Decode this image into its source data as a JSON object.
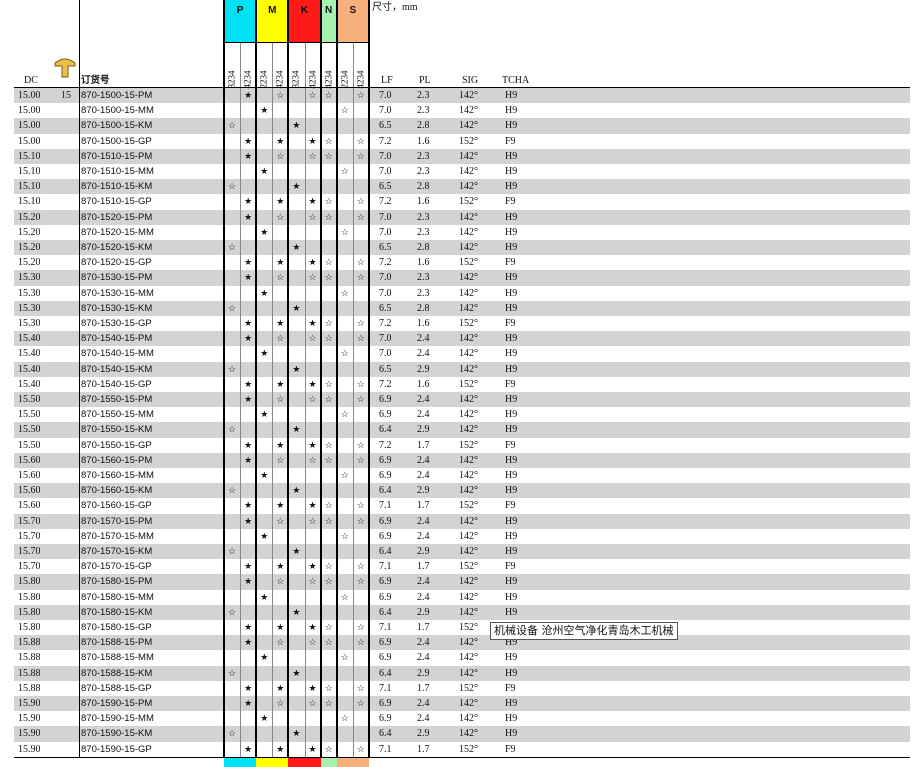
{
  "header": {
    "dc": "DC",
    "order": "订货号",
    "size_label": "尺寸，mm",
    "lf": "LF",
    "pl": "PL",
    "sig": "SIG",
    "tcha": "TCHA",
    "first_row_size": "15",
    "groups": [
      {
        "label": "P",
        "span": 2,
        "color": "#00e1f5"
      },
      {
        "label": "M",
        "span": 2,
        "color": "#ffff00"
      },
      {
        "label": "K",
        "span": 2,
        "color": "#ff1a1a"
      },
      {
        "label": "N",
        "span": 1,
        "color": "#a6f0b0"
      },
      {
        "label": "S",
        "span": 2,
        "color": "#f7b07c"
      }
    ],
    "grade_codes": [
      "3234",
      "4234",
      "2234",
      "4234",
      "3234",
      "4234",
      "4234",
      "2234",
      "4234"
    ]
  },
  "rows": [
    [
      "15.00",
      "870-1500-15-PM",
      [
        null,
        "★",
        null,
        "☆",
        null,
        "☆",
        "☆",
        null,
        "☆"
      ],
      "7.0",
      "2.3",
      "142°",
      "H9"
    ],
    [
      "15.00",
      "870-1500-15-MM",
      [
        null,
        null,
        "★",
        null,
        null,
        null,
        null,
        "☆",
        null
      ],
      "7.0",
      "2.3",
      "142°",
      "H9"
    ],
    [
      "15.00",
      "870-1500-15-KM",
      [
        "☆",
        null,
        null,
        null,
        "★",
        null,
        null,
        null,
        null
      ],
      "6.5",
      "2.8",
      "142°",
      "H9"
    ],
    [
      "15.00",
      "870-1500-15-GP",
      [
        null,
        "★",
        null,
        "★",
        null,
        "★",
        "☆",
        null,
        "☆"
      ],
      "7.2",
      "1.6",
      "152°",
      "F9"
    ],
    [
      "15.10",
      "870-1510-15-PM",
      [
        null,
        "★",
        null,
        "☆",
        null,
        "☆",
        "☆",
        null,
        "☆"
      ],
      "7.0",
      "2.3",
      "142°",
      "H9"
    ],
    [
      "15.10",
      "870-1510-15-MM",
      [
        null,
        null,
        "★",
        null,
        null,
        null,
        null,
        "☆",
        null
      ],
      "7.0",
      "2.3",
      "142°",
      "H9"
    ],
    [
      "15.10",
      "870-1510-15-KM",
      [
        "☆",
        null,
        null,
        null,
        "★",
        null,
        null,
        null,
        null
      ],
      "6.5",
      "2.8",
      "142°",
      "H9"
    ],
    [
      "15.10",
      "870-1510-15-GP",
      [
        null,
        "★",
        null,
        "★",
        null,
        "★",
        "☆",
        null,
        "☆"
      ],
      "7.2",
      "1.6",
      "152°",
      "F9"
    ],
    [
      "15.20",
      "870-1520-15-PM",
      [
        null,
        "★",
        null,
        "☆",
        null,
        "☆",
        "☆",
        null,
        "☆"
      ],
      "7.0",
      "2.3",
      "142°",
      "H9"
    ],
    [
      "15.20",
      "870-1520-15-MM",
      [
        null,
        null,
        "★",
        null,
        null,
        null,
        null,
        "☆",
        null
      ],
      "7.0",
      "2.3",
      "142°",
      "H9"
    ],
    [
      "15.20",
      "870-1520-15-KM",
      [
        "☆",
        null,
        null,
        null,
        "★",
        null,
        null,
        null,
        null
      ],
      "6.5",
      "2.8",
      "142°",
      "H9"
    ],
    [
      "15.20",
      "870-1520-15-GP",
      [
        null,
        "★",
        null,
        "★",
        null,
        "★",
        "☆",
        null,
        "☆"
      ],
      "7.2",
      "1.6",
      "152°",
      "F9"
    ],
    [
      "15.30",
      "870-1530-15-PM",
      [
        null,
        "★",
        null,
        "☆",
        null,
        "☆",
        "☆",
        null,
        "☆"
      ],
      "7.0",
      "2.3",
      "142°",
      "H9"
    ],
    [
      "15.30",
      "870-1530-15-MM",
      [
        null,
        null,
        "★",
        null,
        null,
        null,
        null,
        "☆",
        null
      ],
      "7.0",
      "2.3",
      "142°",
      "H9"
    ],
    [
      "15.30",
      "870-1530-15-KM",
      [
        "☆",
        null,
        null,
        null,
        "★",
        null,
        null,
        null,
        null
      ],
      "6.5",
      "2.8",
      "142°",
      "H9"
    ],
    [
      "15.30",
      "870-1530-15-GP",
      [
        null,
        "★",
        null,
        "★",
        null,
        "★",
        "☆",
        null,
        "☆"
      ],
      "7.2",
      "1.6",
      "152°",
      "F9"
    ],
    [
      "15.40",
      "870-1540-15-PM",
      [
        null,
        "★",
        null,
        "☆",
        null,
        "☆",
        "☆",
        null,
        "☆"
      ],
      "7.0",
      "2.4",
      "142°",
      "H9"
    ],
    [
      "15.40",
      "870-1540-15-MM",
      [
        null,
        null,
        "★",
        null,
        null,
        null,
        null,
        "☆",
        null
      ],
      "7.0",
      "2.4",
      "142°",
      "H9"
    ],
    [
      "15.40",
      "870-1540-15-KM",
      [
        "☆",
        null,
        null,
        null,
        "★",
        null,
        null,
        null,
        null
      ],
      "6.5",
      "2.9",
      "142°",
      "H9"
    ],
    [
      "15.40",
      "870-1540-15-GP",
      [
        null,
        "★",
        null,
        "★",
        null,
        "★",
        "☆",
        null,
        "☆"
      ],
      "7.2",
      "1.6",
      "152°",
      "F9"
    ],
    [
      "15.50",
      "870-1550-15-PM",
      [
        null,
        "★",
        null,
        "☆",
        null,
        "☆",
        "☆",
        null,
        "☆"
      ],
      "6.9",
      "2.4",
      "142°",
      "H9"
    ],
    [
      "15.50",
      "870-1550-15-MM",
      [
        null,
        null,
        "★",
        null,
        null,
        null,
        null,
        "☆",
        null
      ],
      "6.9",
      "2.4",
      "142°",
      "H9"
    ],
    [
      "15.50",
      "870-1550-15-KM",
      [
        "☆",
        null,
        null,
        null,
        "★",
        null,
        null,
        null,
        null
      ],
      "6.4",
      "2.9",
      "142°",
      "H9"
    ],
    [
      "15.50",
      "870-1550-15-GP",
      [
        null,
        "★",
        null,
        "★",
        null,
        "★",
        "☆",
        null,
        "☆"
      ],
      "7.2",
      "1.7",
      "152°",
      "F9"
    ],
    [
      "15.60",
      "870-1560-15-PM",
      [
        null,
        "★",
        null,
        "☆",
        null,
        "☆",
        "☆",
        null,
        "☆"
      ],
      "6.9",
      "2.4",
      "142°",
      "H9"
    ],
    [
      "15.60",
      "870-1560-15-MM",
      [
        null,
        null,
        "★",
        null,
        null,
        null,
        null,
        "☆",
        null
      ],
      "6.9",
      "2.4",
      "142°",
      "H9"
    ],
    [
      "15.60",
      "870-1560-15-KM",
      [
        "☆",
        null,
        null,
        null,
        "★",
        null,
        null,
        null,
        null
      ],
      "6.4",
      "2.9",
      "142°",
      "H9"
    ],
    [
      "15.60",
      "870-1560-15-GP",
      [
        null,
        "★",
        null,
        "★",
        null,
        "★",
        "☆",
        null,
        "☆"
      ],
      "7.1",
      "1.7",
      "152°",
      "F9"
    ],
    [
      "15.70",
      "870-1570-15-PM",
      [
        null,
        "★",
        null,
        "☆",
        null,
        "☆",
        "☆",
        null,
        "☆"
      ],
      "6.9",
      "2.4",
      "142°",
      "H9"
    ],
    [
      "15.70",
      "870-1570-15-MM",
      [
        null,
        null,
        "★",
        null,
        null,
        null,
        null,
        "☆",
        null
      ],
      "6.9",
      "2.4",
      "142°",
      "H9"
    ],
    [
      "15.70",
      "870-1570-15-KM",
      [
        "☆",
        null,
        null,
        null,
        "★",
        null,
        null,
        null,
        null
      ],
      "6.4",
      "2.9",
      "142°",
      "H9"
    ],
    [
      "15.70",
      "870-1570-15-GP",
      [
        null,
        "★",
        null,
        "★",
        null,
        "★",
        "☆",
        null,
        "☆"
      ],
      "7.1",
      "1.7",
      "152°",
      "F9"
    ],
    [
      "15.80",
      "870-1580-15-PM",
      [
        null,
        "★",
        null,
        "☆",
        null,
        "☆",
        "☆",
        null,
        "☆"
      ],
      "6.9",
      "2.4",
      "142°",
      "H9"
    ],
    [
      "15.80",
      "870-1580-15-MM",
      [
        null,
        null,
        "★",
        null,
        null,
        null,
        null,
        "☆",
        null
      ],
      "6.9",
      "2.4",
      "142°",
      "H9"
    ],
    [
      "15.80",
      "870-1580-15-KM",
      [
        "☆",
        null,
        null,
        null,
        "★",
        null,
        null,
        null,
        null
      ],
      "6.4",
      "2.9",
      "142°",
      "H9"
    ],
    [
      "15.80",
      "870-1580-15-GP",
      [
        null,
        "★",
        null,
        "★",
        null,
        "★",
        "☆",
        null,
        "☆"
      ],
      "7.1",
      "1.7",
      "152°",
      "F9"
    ],
    [
      "15.88",
      "870-1588-15-PM",
      [
        null,
        "★",
        null,
        "☆",
        null,
        "☆",
        "☆",
        null,
        "☆"
      ],
      "6.9",
      "2.4",
      "142°",
      "H9"
    ],
    [
      "15.88",
      "870-1588-15-MM",
      [
        null,
        null,
        "★",
        null,
        null,
        null,
        null,
        "☆",
        null
      ],
      "6.9",
      "2.4",
      "142°",
      "H9"
    ],
    [
      "15.88",
      "870-1588-15-KM",
      [
        "☆",
        null,
        null,
        null,
        "★",
        null,
        null,
        null,
        null
      ],
      "6.4",
      "2.9",
      "142°",
      "H9"
    ],
    [
      "15.88",
      "870-1588-15-GP",
      [
        null,
        "★",
        null,
        "★",
        null,
        "★",
        "☆",
        null,
        "☆"
      ],
      "7.1",
      "1.7",
      "152°",
      "F9"
    ],
    [
      "15.90",
      "870-1590-15-PM",
      [
        null,
        "★",
        null,
        "☆",
        null,
        "☆",
        "☆",
        null,
        "☆"
      ],
      "6.9",
      "2.4",
      "142°",
      "H9"
    ],
    [
      "15.90",
      "870-1590-15-MM",
      [
        null,
        null,
        "★",
        null,
        null,
        null,
        null,
        "☆",
        null
      ],
      "6.9",
      "2.4",
      "142°",
      "H9"
    ],
    [
      "15.90",
      "870-1590-15-KM",
      [
        "☆",
        null,
        null,
        null,
        "★",
        null,
        null,
        null,
        null
      ],
      "6.4",
      "2.9",
      "142°",
      "H9"
    ],
    [
      "15.90",
      "870-1590-15-GP",
      [
        null,
        "★",
        null,
        "★",
        null,
        "★",
        "☆",
        null,
        "☆"
      ],
      "7.1",
      "1.7",
      "152°",
      "F9"
    ]
  ],
  "tooltip": "机械设备 沧州空气净化青岛木工机械"
}
